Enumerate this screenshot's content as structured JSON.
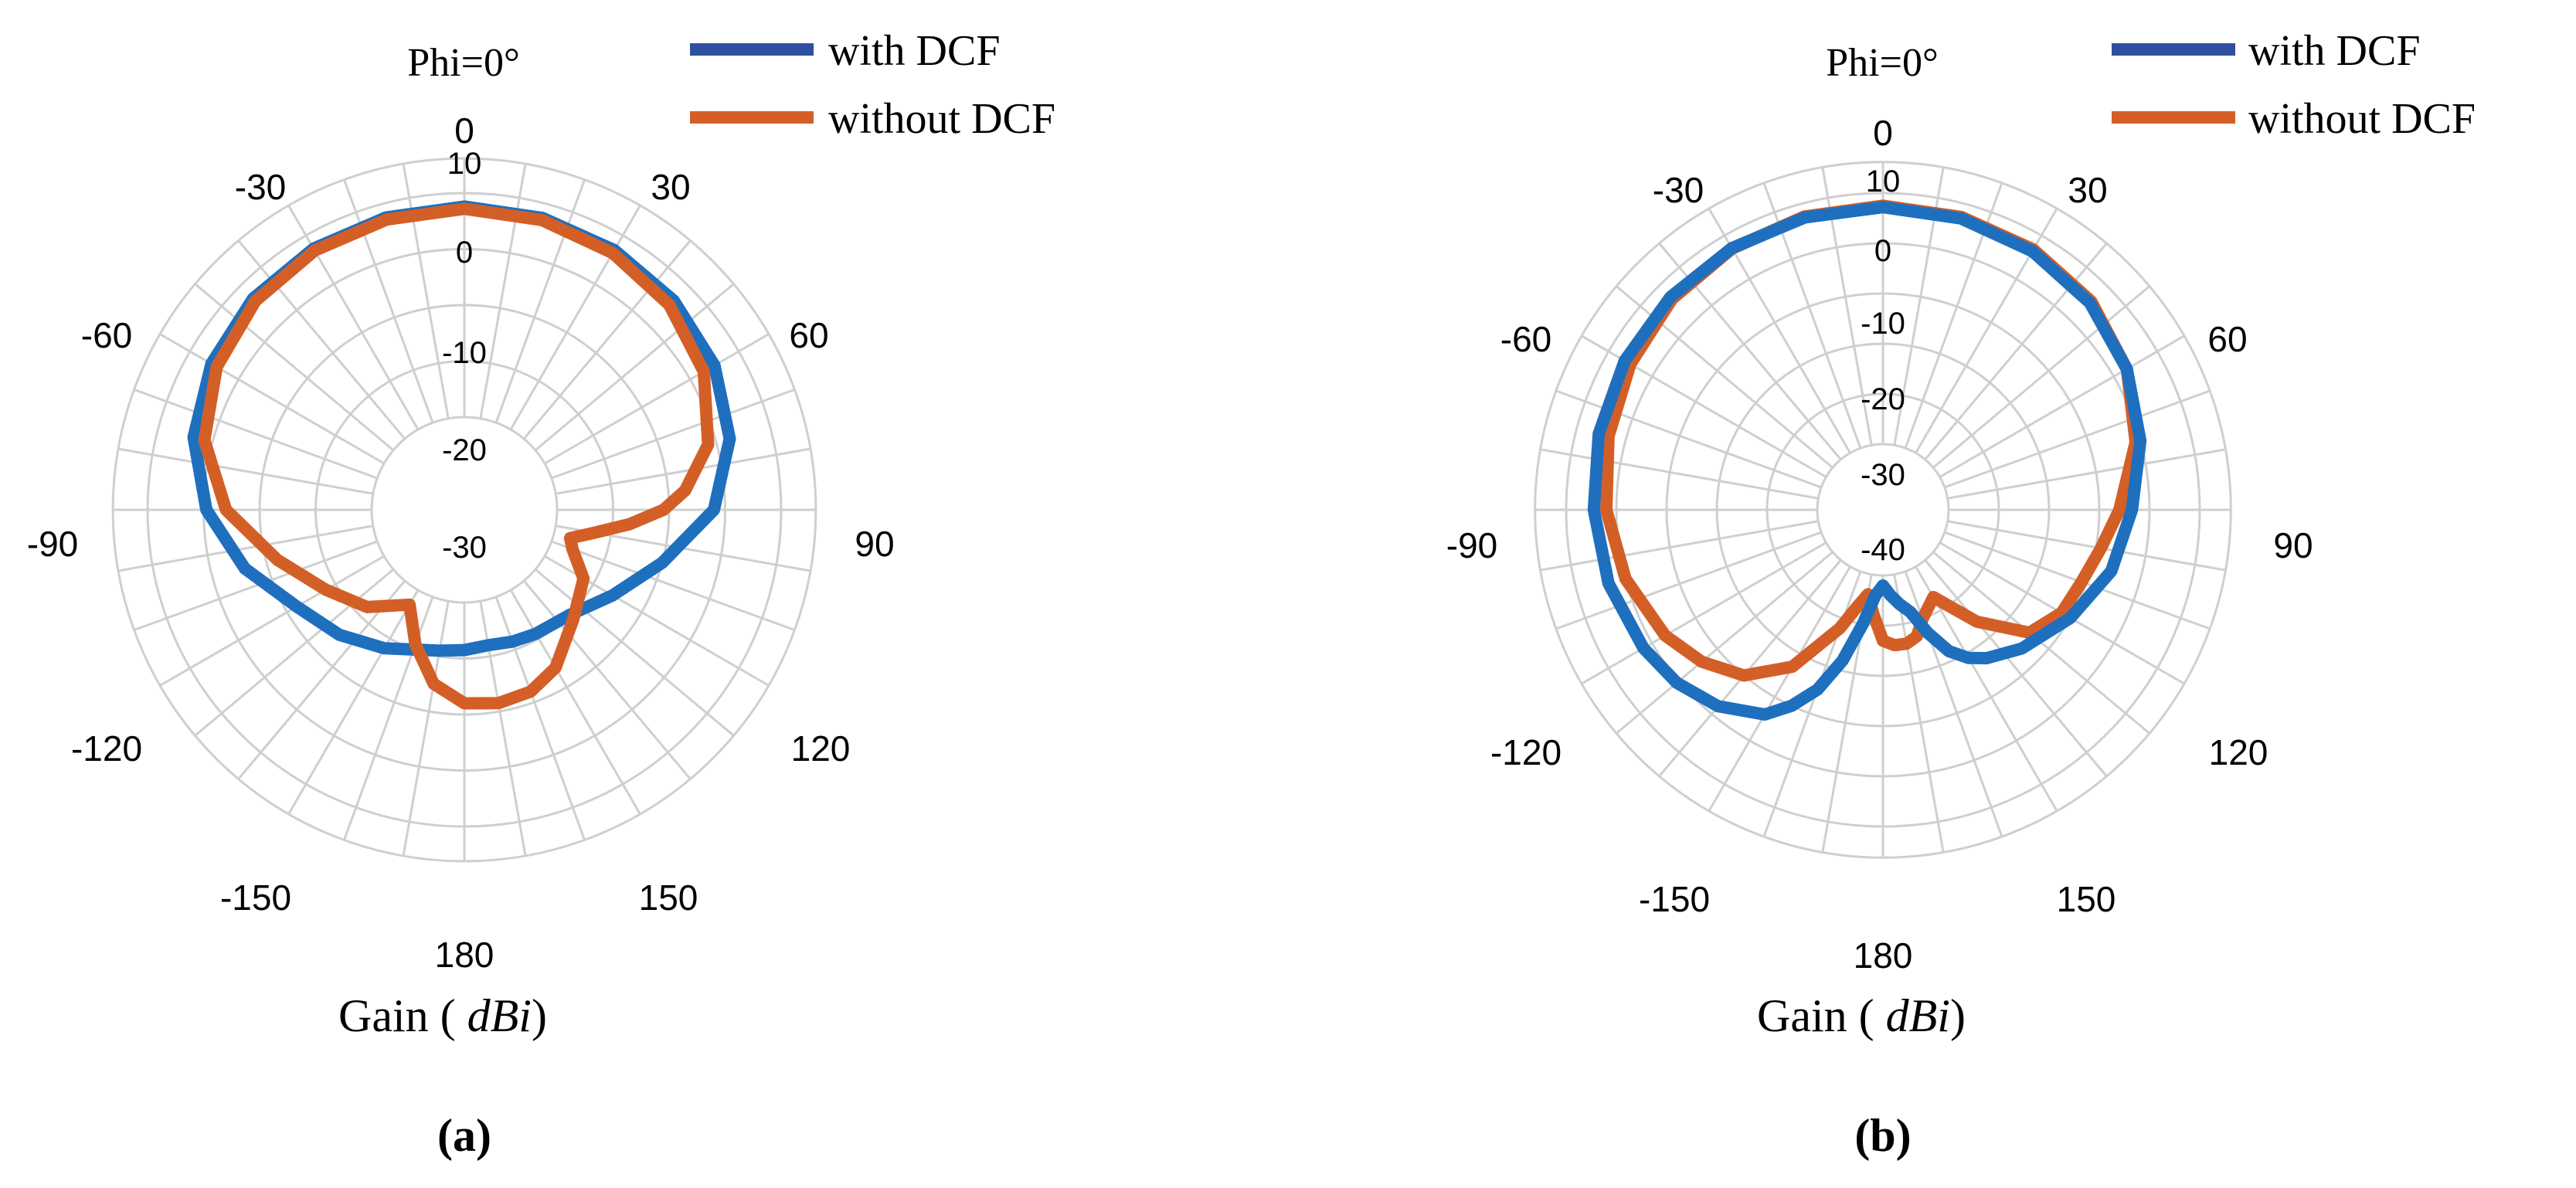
{
  "colors": {
    "with_dcf": "#1f6fbf",
    "without_dcf": "#d35f27",
    "legend_with": "#2f4f9f",
    "grid": "#cfcfcf"
  },
  "chart_data": [
    {
      "type": "polar-line",
      "panel_label": "(a)",
      "plane_label": "Phi=0°",
      "xlabel": "Gain (dBi)",
      "rlim": [
        -30,
        10
      ],
      "radial_ticks": [
        "-30",
        "-20",
        "-10",
        "0",
        "10"
      ],
      "angle_ticks": [
        "0",
        "30",
        "60",
        "90",
        "120",
        "150",
        "180",
        "-150",
        "-120",
        "-90",
        "-60",
        "-30"
      ],
      "legend": {
        "position": "top-right",
        "entries": [
          "with DCF",
          "without DCF"
        ]
      },
      "grid": true,
      "series": [
        {
          "name": "with DCF",
          "theta_deg": [
            0,
            15,
            30,
            45,
            60,
            75,
            90,
            105,
            120,
            135,
            150,
            160,
            170,
            180,
            190,
            200,
            210,
            225,
            240,
            255,
            270,
            285,
            300,
            315,
            330,
            345,
            360
          ],
          "values": [
            7.6,
            7.4,
            7.0,
            6.3,
            5.0,
            2.5,
            -2.0,
            -10.0,
            -16.0,
            -20.0,
            -21.0,
            -21.5,
            -22.0,
            -21.5,
            -21.0,
            -20.0,
            -18.0,
            -15.0,
            -12.0,
            -6.0,
            -0.5,
            3.5,
            5.6,
            6.8,
            7.3,
            7.5,
            7.6
          ]
        },
        {
          "name": "without DCF",
          "theta_deg": [
            0,
            15,
            30,
            45,
            60,
            75,
            85,
            90,
            95,
            100,
            105,
            110,
            120,
            135,
            150,
            160,
            170,
            180,
            190,
            200,
            210,
            225,
            240,
            255,
            270,
            285,
            300,
            315,
            330,
            345,
            360
          ],
          "values": [
            7.2,
            7.0,
            6.4,
            5.2,
            2.8,
            -1.5,
            -7.0,
            -11.0,
            -17.0,
            -23.0,
            -27.0,
            -26.0,
            -22.0,
            -19.0,
            -14.0,
            -12.0,
            -11.5,
            -12.0,
            -15.0,
            -21.0,
            -27.0,
            -22.0,
            -18.0,
            -12.0,
            -4.0,
            1.5,
            4.5,
            6.2,
            6.9,
            7.1,
            7.2
          ]
        }
      ]
    },
    {
      "type": "polar-line",
      "panel_label": "(b)",
      "plane_label": "Phi=0°",
      "xlabel": "Gain (dBi)",
      "rlim": [
        -40,
        10
      ],
      "radial_ticks": [
        "-40",
        "-30",
        "-20",
        "-10",
        "0",
        "10"
      ],
      "angle_ticks": [
        "0",
        "30",
        "60",
        "90",
        "120",
        "150",
        "180",
        "-150",
        "-120",
        "-90",
        "-60",
        "-30"
      ],
      "legend": {
        "position": "top-right",
        "entries": [
          "with DCF",
          "without DCF"
        ]
      },
      "grid": true,
      "series": [
        {
          "name": "with DCF",
          "theta_deg": [
            0,
            15,
            30,
            45,
            60,
            75,
            90,
            105,
            120,
            135,
            145,
            150,
            155,
            160,
            165,
            170,
            175,
            180,
            185,
            190,
            195,
            200,
            205,
            210,
            220,
            230,
            240,
            255,
            270,
            285,
            300,
            315,
            330,
            345,
            360
          ],
          "values": [
            7.2,
            7.0,
            6.4,
            5.2,
            3.0,
            0.0,
            -3.5,
            -6.0,
            -10.0,
            -14.0,
            -17.0,
            -19.0,
            -22.0,
            -27.0,
            -32.0,
            -34.0,
            -36.0,
            -38.0,
            -36.0,
            -30.0,
            -22.0,
            -15.0,
            -10.0,
            -6.0,
            -2.0,
            0.5,
            2.0,
            3.5,
            4.5,
            5.5,
            6.3,
            6.8,
            7.1,
            7.2,
            7.2
          ]
        },
        {
          "name": "without DCF",
          "theta_deg": [
            0,
            15,
            30,
            45,
            60,
            75,
            90,
            100,
            110,
            120,
            130,
            140,
            150,
            160,
            165,
            170,
            175,
            180,
            185,
            190,
            195,
            200,
            210,
            220,
            230,
            240,
            255,
            270,
            285,
            300,
            315,
            330,
            345,
            360
          ],
          "values": [
            7.5,
            7.3,
            6.8,
            5.6,
            3.0,
            -1.0,
            -6.0,
            -9.0,
            -11.0,
            -12.0,
            -15.0,
            -24.0,
            -33.0,
            -30.0,
            -27.0,
            -26.0,
            -26.0,
            -27.0,
            -32.0,
            -36.0,
            -33.0,
            -28.0,
            -17.0,
            -10.0,
            -6.0,
            -3.0,
            0.0,
            2.0,
            3.5,
            5.0,
            6.3,
            7.0,
            7.4,
            7.5
          ]
        }
      ]
    }
  ]
}
